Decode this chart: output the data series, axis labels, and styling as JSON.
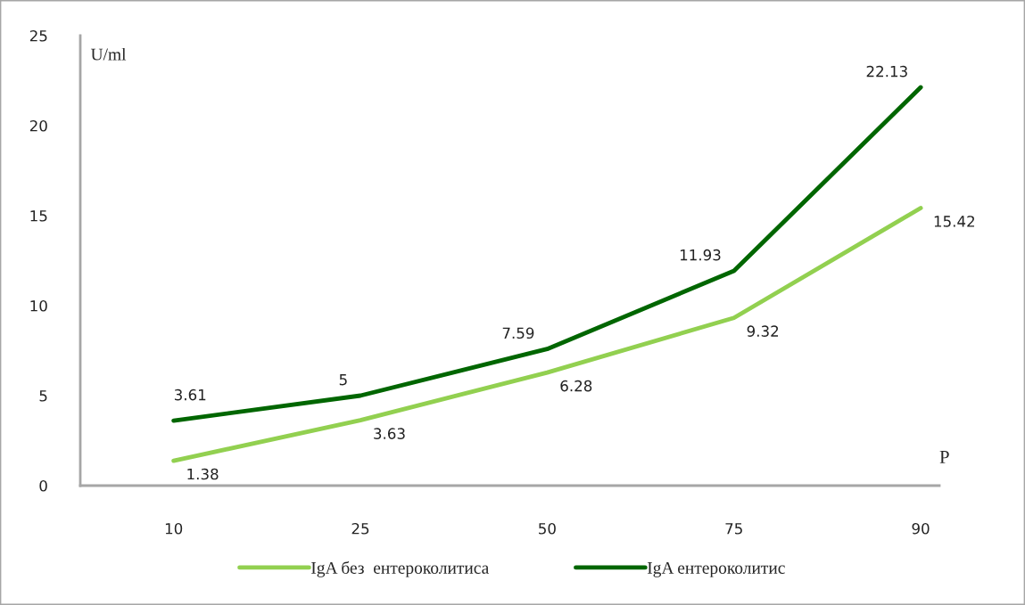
{
  "chart_data": {
    "type": "line",
    "ylabel": "U/ml",
    "xlabel": "P",
    "categories": [
      "10",
      "25",
      "50",
      "75",
      "90"
    ],
    "series": [
      {
        "name": "IgA без  ентероколитиса",
        "color": "#92d050",
        "values": [
          1.38,
          3.63,
          6.28,
          9.32,
          15.42
        ]
      },
      {
        "name": "IgA ентероколитис",
        "color": "#006600",
        "values": [
          3.61,
          5,
          7.59,
          11.93,
          22.13
        ]
      }
    ],
    "ylim": [
      0,
      25
    ],
    "yticks": [
      0,
      5,
      10,
      15,
      20,
      25
    ],
    "grid": false,
    "legend": "bottom",
    "data_labels": true,
    "marker": "none",
    "line_style": "solid"
  }
}
